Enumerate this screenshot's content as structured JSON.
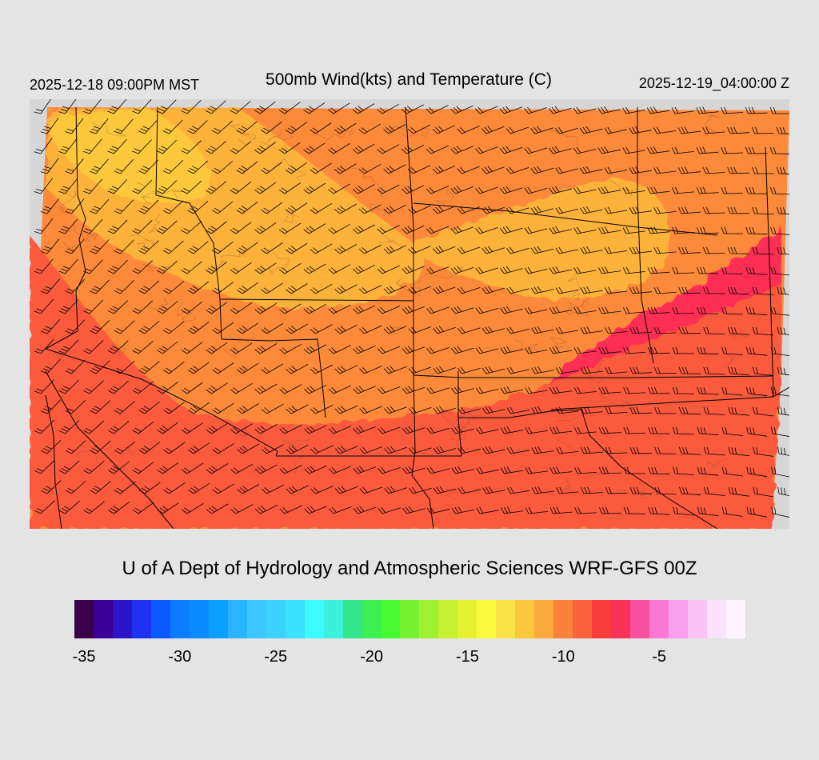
{
  "header": {
    "title": "500mb Wind(kts) and Temperature (C)",
    "local_time": "2025-12-18 09:00PM MST",
    "utc_time": "2025-12-19_04:00:00 Z"
  },
  "footer": {
    "credit": "U of A Dept of Hydrology and Atmospheric Sciences WRF-GFS 00Z"
  },
  "colorbar": {
    "colors": [
      "#3a0048",
      "#3c0096",
      "#2d14c8",
      "#1e32f0",
      "#0a5aff",
      "#0a7cff",
      "#0a8cff",
      "#0aa0ff",
      "#28b4ff",
      "#3cc8ff",
      "#3cd2ff",
      "#3ce1ff",
      "#3cfaff",
      "#3cf0dc",
      "#32e68c",
      "#3cf050",
      "#46fa32",
      "#78f032",
      "#a0f032",
      "#c8f032",
      "#e6f032",
      "#fafa3c",
      "#fae146",
      "#fac83c",
      "#faaa3c",
      "#fa823c",
      "#fa643c",
      "#fa3c3c",
      "#fa325a",
      "#fa50a0",
      "#fa78d2",
      "#fa9ef0",
      "#fac3f5",
      "#fce1fa",
      "#fff4ff"
    ],
    "tick_labels": [
      "-35",
      "-30",
      "-25",
      "-20",
      "-15",
      "-10",
      "-5"
    ]
  },
  "map": {
    "warm_color": "#ff2d55",
    "mid_color": "#fb5a3c",
    "base_color": "#fc8a3a",
    "cool_color": "#fdb23a",
    "coolest_color": "#fdc83a",
    "border_color": "#000000",
    "barb_color": "#000000"
  }
}
